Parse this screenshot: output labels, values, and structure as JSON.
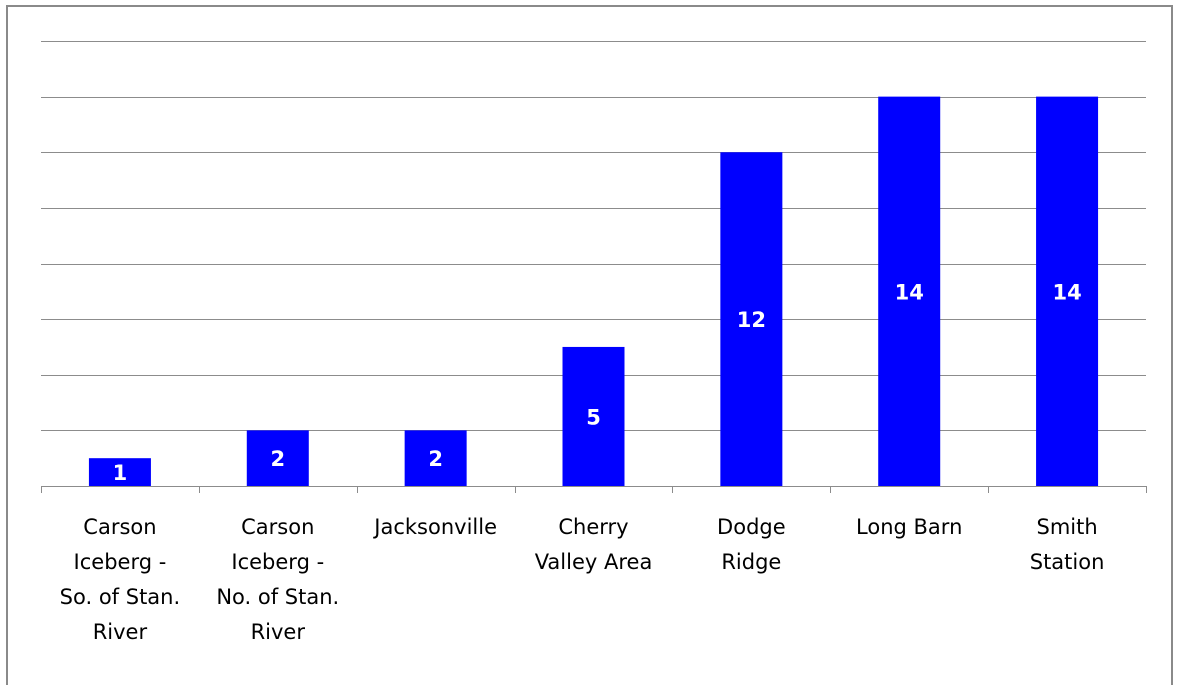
{
  "chart_data": {
    "type": "bar",
    "categories": [
      "Carson Iceberg - So. of Stan. River",
      "Carson Iceberg - No. of Stan. River",
      "Jacksonville",
      "Cherry Valley Area",
      "Dodge Ridge",
      "Long Barn",
      "Smith Station"
    ],
    "category_lines": [
      [
        "Carson",
        "Iceberg -",
        "So. of Stan.",
        "River"
      ],
      [
        "Carson",
        "Iceberg -",
        "No. of Stan.",
        "River"
      ],
      [
        "Jacksonville"
      ],
      [
        "Cherry",
        "Valley Area"
      ],
      [
        "Dodge",
        "Ridge"
      ],
      [
        "Long Barn"
      ],
      [
        "Smith",
        "Station"
      ]
    ],
    "values": [
      1,
      2,
      2,
      5,
      12,
      14,
      14
    ],
    "ylim": [
      0,
      16
    ],
    "grid": true,
    "data_labels": true,
    "title": "",
    "xlabel": "",
    "ylabel": "",
    "bar_color": "#0000FF",
    "grid_color": "#8C8C8C",
    "label_color": "#FFFFFF"
  }
}
